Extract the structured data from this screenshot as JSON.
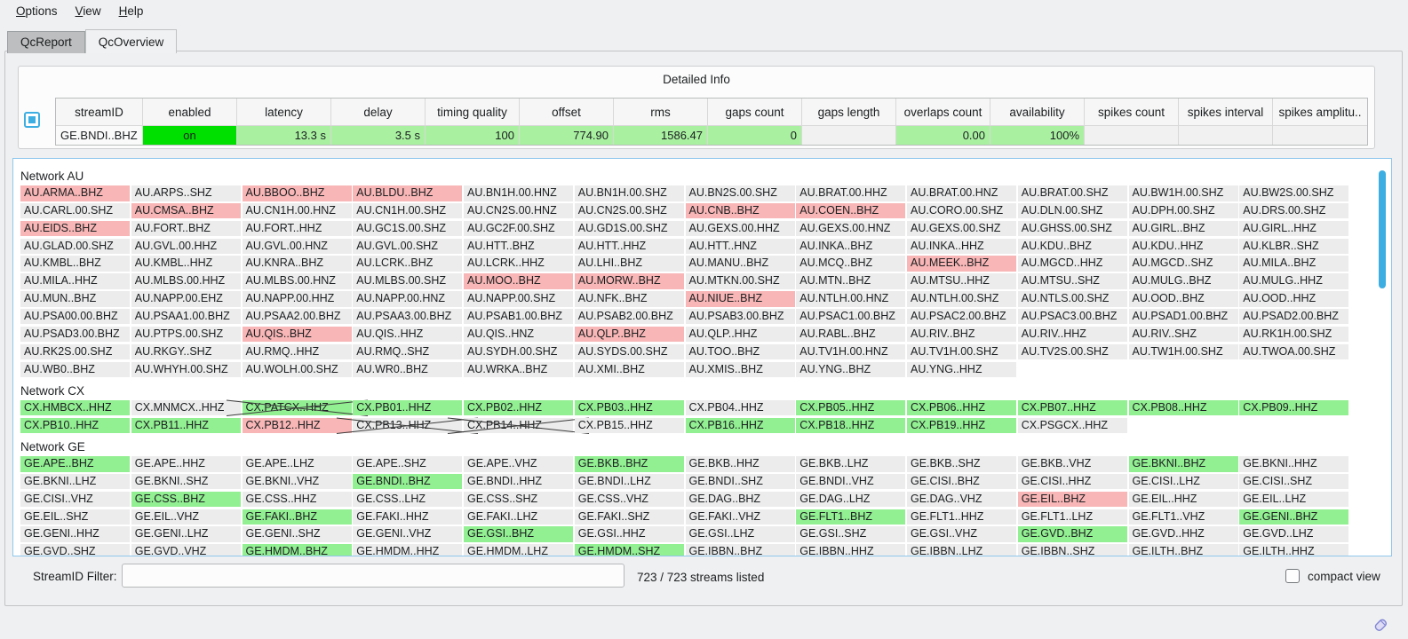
{
  "colors": {
    "accent": "#3daee2",
    "normal": "#ececec",
    "alert": "#f8b6b6",
    "good": "#92ef92",
    "on": "#00e000",
    "metric": "#a9f1a1",
    "plain": "#fafafa",
    "empty": "#f1f1f1",
    "panel_border": "#8fc7ec",
    "cross": "#3c3c3c"
  },
  "menu": {
    "items": [
      {
        "label": "Options"
      },
      {
        "label": "View"
      },
      {
        "label": "Help"
      }
    ]
  },
  "tabs": {
    "report": "QcReport",
    "overview": "QcOverview"
  },
  "detailed_info": {
    "title": "Detailed Info",
    "columns": [
      "streamID",
      "enabled",
      "latency",
      "delay",
      "timing quality",
      "offset",
      "rms",
      "gaps count",
      "gaps length",
      "overlaps count",
      "availability",
      "spikes count",
      "spikes interval",
      "spikes amplitu.."
    ],
    "row": {
      "cells": [
        {
          "text": "GE.BNDI..BHZ",
          "bg": "plain",
          "align": "left"
        },
        {
          "text": "on",
          "bg": "on",
          "align": "center"
        },
        {
          "text": "13.3 s",
          "bg": "metric",
          "align": "right"
        },
        {
          "text": "3.5 s",
          "bg": "metric",
          "align": "right"
        },
        {
          "text": "100",
          "bg": "metric",
          "align": "right"
        },
        {
          "text": "774.90",
          "bg": "metric",
          "align": "right"
        },
        {
          "text": "1586.47",
          "bg": "metric",
          "align": "right"
        },
        {
          "text": "0",
          "bg": "metric",
          "align": "right"
        },
        {
          "text": "",
          "bg": "empty",
          "align": "right"
        },
        {
          "text": "0.00",
          "bg": "metric",
          "align": "right"
        },
        {
          "text": "100%",
          "bg": "metric",
          "align": "right"
        },
        {
          "text": "",
          "bg": "empty",
          "align": "right"
        },
        {
          "text": "",
          "bg": "empty",
          "align": "right"
        },
        {
          "text": "",
          "bg": "empty",
          "align": "right"
        }
      ]
    }
  },
  "networks": [
    {
      "label": "Network AU",
      "rows": [
        [
          [
            "AU.ARMA..BHZ",
            "r"
          ],
          [
            "AU.ARPS..SHZ",
            ""
          ],
          [
            "AU.BBOO..BHZ",
            "r"
          ],
          [
            "AU.BLDU..BHZ",
            "r"
          ],
          [
            "AU.BN1H.00.HNZ",
            ""
          ],
          [
            "AU.BN1H.00.SHZ",
            ""
          ],
          [
            "AU.BN2S.00.SHZ",
            ""
          ],
          [
            "AU.BRAT.00.HHZ",
            ""
          ],
          [
            "AU.BRAT.00.HNZ",
            ""
          ],
          [
            "AU.BRAT.00.SHZ",
            ""
          ],
          [
            "AU.BW1H.00.SHZ",
            ""
          ],
          [
            "AU.BW2S.00.SHZ",
            ""
          ]
        ],
        [
          [
            "AU.CARL.00.SHZ",
            ""
          ],
          [
            "AU.CMSA..BHZ",
            "r"
          ],
          [
            "AU.CN1H.00.HNZ",
            ""
          ],
          [
            "AU.CN1H.00.SHZ",
            ""
          ],
          [
            "AU.CN2S.00.HNZ",
            ""
          ],
          [
            "AU.CN2S.00.SHZ",
            ""
          ],
          [
            "AU.CNB..BHZ",
            "r"
          ],
          [
            "AU.COEN..BHZ",
            "r"
          ],
          [
            "AU.CORO.00.SHZ",
            ""
          ],
          [
            "AU.DLN.00.SHZ",
            ""
          ],
          [
            "AU.DPH.00.SHZ",
            ""
          ],
          [
            "AU.DRS.00.SHZ",
            ""
          ]
        ],
        [
          [
            "AU.EIDS..BHZ",
            "r"
          ],
          [
            "AU.FORT..BHZ",
            ""
          ],
          [
            "AU.FORT..HHZ",
            ""
          ],
          [
            "AU.GC1S.00.SHZ",
            ""
          ],
          [
            "AU.GC2F.00.SHZ",
            ""
          ],
          [
            "AU.GD1S.00.SHZ",
            ""
          ],
          [
            "AU.GEXS.00.HHZ",
            ""
          ],
          [
            "AU.GEXS.00.HNZ",
            ""
          ],
          [
            "AU.GEXS.00.SHZ",
            ""
          ],
          [
            "AU.GHSS.00.SHZ",
            ""
          ],
          [
            "AU.GIRL..BHZ",
            ""
          ],
          [
            "AU.GIRL..HHZ",
            ""
          ]
        ],
        [
          [
            "AU.GLAD.00.SHZ",
            ""
          ],
          [
            "AU.GVL.00.HHZ",
            ""
          ],
          [
            "AU.GVL.00.HNZ",
            ""
          ],
          [
            "AU.GVL.00.SHZ",
            ""
          ],
          [
            "AU.HTT..BHZ",
            ""
          ],
          [
            "AU.HTT..HHZ",
            ""
          ],
          [
            "AU.HTT..HNZ",
            ""
          ],
          [
            "AU.INKA..BHZ",
            ""
          ],
          [
            "AU.INKA..HHZ",
            ""
          ],
          [
            "AU.KDU..BHZ",
            ""
          ],
          [
            "AU.KDU..HHZ",
            ""
          ],
          [
            "AU.KLBR..SHZ",
            ""
          ]
        ],
        [
          [
            "AU.KMBL..BHZ",
            ""
          ],
          [
            "AU.KMBL..HHZ",
            ""
          ],
          [
            "AU.KNRA..BHZ",
            ""
          ],
          [
            "AU.LCRK..BHZ",
            ""
          ],
          [
            "AU.LCRK..HHZ",
            ""
          ],
          [
            "AU.LHI..BHZ",
            ""
          ],
          [
            "AU.MANU..BHZ",
            ""
          ],
          [
            "AU.MCQ..BHZ",
            ""
          ],
          [
            "AU.MEEK..BHZ",
            "r"
          ],
          [
            "AU.MGCD..HHZ",
            ""
          ],
          [
            "AU.MGCD..SHZ",
            ""
          ],
          [
            "AU.MILA..BHZ",
            ""
          ]
        ],
        [
          [
            "AU.MILA..HHZ",
            ""
          ],
          [
            "AU.MLBS.00.HHZ",
            ""
          ],
          [
            "AU.MLBS.00.HNZ",
            ""
          ],
          [
            "AU.MLBS.00.SHZ",
            ""
          ],
          [
            "AU.MOO..BHZ",
            "r"
          ],
          [
            "AU.MORW..BHZ",
            "r"
          ],
          [
            "AU.MTKN.00.SHZ",
            ""
          ],
          [
            "AU.MTN..BHZ",
            ""
          ],
          [
            "AU.MTSU..HHZ",
            ""
          ],
          [
            "AU.MTSU..SHZ",
            ""
          ],
          [
            "AU.MULG..BHZ",
            ""
          ],
          [
            "AU.MULG..HHZ",
            ""
          ]
        ],
        [
          [
            "AU.MUN..BHZ",
            ""
          ],
          [
            "AU.NAPP.00.EHZ",
            ""
          ],
          [
            "AU.NAPP.00.HHZ",
            ""
          ],
          [
            "AU.NAPP.00.HNZ",
            ""
          ],
          [
            "AU.NAPP.00.SHZ",
            ""
          ],
          [
            "AU.NFK..BHZ",
            ""
          ],
          [
            "AU.NIUE..BHZ",
            "r"
          ],
          [
            "AU.NTLH.00.HNZ",
            ""
          ],
          [
            "AU.NTLH.00.SHZ",
            ""
          ],
          [
            "AU.NTLS.00.SHZ",
            ""
          ],
          [
            "AU.OOD..BHZ",
            ""
          ],
          [
            "AU.OOD..HHZ",
            ""
          ]
        ],
        [
          [
            "AU.PSA00.00.BHZ",
            ""
          ],
          [
            "AU.PSAA1.00.BHZ",
            ""
          ],
          [
            "AU.PSAA2.00.BHZ",
            ""
          ],
          [
            "AU.PSAA3.00.BHZ",
            ""
          ],
          [
            "AU.PSAB1.00.BHZ",
            ""
          ],
          [
            "AU.PSAB2.00.BHZ",
            ""
          ],
          [
            "AU.PSAB3.00.BHZ",
            ""
          ],
          [
            "AU.PSAC1.00.BHZ",
            ""
          ],
          [
            "AU.PSAC2.00.BHZ",
            ""
          ],
          [
            "AU.PSAC3.00.BHZ",
            ""
          ],
          [
            "AU.PSAD1.00.BHZ",
            ""
          ],
          [
            "AU.PSAD2.00.BHZ",
            ""
          ]
        ],
        [
          [
            "AU.PSAD3.00.BHZ",
            ""
          ],
          [
            "AU.PTPS.00.SHZ",
            ""
          ],
          [
            "AU.QIS..BHZ",
            "r"
          ],
          [
            "AU.QIS..HHZ",
            ""
          ],
          [
            "AU.QIS..HNZ",
            ""
          ],
          [
            "AU.QLP..BHZ",
            "r"
          ],
          [
            "AU.QLP..HHZ",
            ""
          ],
          [
            "AU.RABL..BHZ",
            ""
          ],
          [
            "AU.RIV..BHZ",
            ""
          ],
          [
            "AU.RIV..HHZ",
            ""
          ],
          [
            "AU.RIV..SHZ",
            ""
          ],
          [
            "AU.RK1H.00.SHZ",
            ""
          ]
        ],
        [
          [
            "AU.RK2S.00.SHZ",
            ""
          ],
          [
            "AU.RKGY..SHZ",
            ""
          ],
          [
            "AU.RMQ..HHZ",
            ""
          ],
          [
            "AU.RMQ..SHZ",
            ""
          ],
          [
            "AU.SYDH.00.SHZ",
            ""
          ],
          [
            "AU.SYDS.00.SHZ",
            ""
          ],
          [
            "AU.TOO..BHZ",
            ""
          ],
          [
            "AU.TV1H.00.HNZ",
            ""
          ],
          [
            "AU.TV1H.00.SHZ",
            ""
          ],
          [
            "AU.TV2S.00.SHZ",
            ""
          ],
          [
            "AU.TW1H.00.SHZ",
            ""
          ],
          [
            "AU.TWOA.00.SHZ",
            ""
          ]
        ],
        [
          [
            "AU.WB0..BHZ",
            ""
          ],
          [
            "AU.WHYH.00.SHZ",
            ""
          ],
          [
            "AU.WOLH.00.SHZ",
            ""
          ],
          [
            "AU.WR0..BHZ",
            ""
          ],
          [
            "AU.WRKA..BHZ",
            ""
          ],
          [
            "AU.XMI..BHZ",
            ""
          ],
          [
            "AU.XMIS..BHZ",
            ""
          ],
          [
            "AU.YNG..BHZ",
            ""
          ],
          [
            "AU.YNG..HHZ",
            ""
          ]
        ]
      ]
    },
    {
      "label": "Network CX",
      "rows": [
        [
          [
            "CX.HMBCX..HHZ",
            "g"
          ],
          [
            "CX.MNMCX..HHZ",
            ""
          ],
          [
            "CX.PATCX..HHZ",
            "gx"
          ],
          [
            "CX.PB01..HHZ",
            "g"
          ],
          [
            "CX.PB02..HHZ",
            "g"
          ],
          [
            "CX.PB03..HHZ",
            "g"
          ],
          [
            "CX.PB04..HHZ",
            ""
          ],
          [
            "CX.PB05..HHZ",
            "g"
          ],
          [
            "CX.PB06..HHZ",
            "g"
          ],
          [
            "CX.PB07..HHZ",
            "g"
          ],
          [
            "CX.PB08..HHZ",
            "g"
          ],
          [
            "CX.PB09..HHZ",
            "g"
          ]
        ],
        [
          [
            "CX.PB10..HHZ",
            "g"
          ],
          [
            "CX.PB11..HHZ",
            "g"
          ],
          [
            "CX.PB12..HHZ",
            "r"
          ],
          [
            "CX.PB13..HHZ",
            "x"
          ],
          [
            "CX.PB14..HHZ",
            "x"
          ],
          [
            "CX.PB15..HHZ",
            ""
          ],
          [
            "CX.PB16..HHZ",
            "g"
          ],
          [
            "CX.PB18..HHZ",
            "g"
          ],
          [
            "CX.PB19..HHZ",
            "g"
          ],
          [
            "CX.PSGCX..HHZ",
            ""
          ]
        ]
      ]
    },
    {
      "label": "Network GE",
      "rows": [
        [
          [
            "GE.APE..BHZ",
            "g"
          ],
          [
            "GE.APE..HHZ",
            ""
          ],
          [
            "GE.APE..LHZ",
            ""
          ],
          [
            "GE.APE..SHZ",
            ""
          ],
          [
            "GE.APE..VHZ",
            ""
          ],
          [
            "GE.BKB..BHZ",
            "g"
          ],
          [
            "GE.BKB..HHZ",
            ""
          ],
          [
            "GE.BKB..LHZ",
            ""
          ],
          [
            "GE.BKB..SHZ",
            ""
          ],
          [
            "GE.BKB..VHZ",
            ""
          ],
          [
            "GE.BKNI..BHZ",
            "g"
          ],
          [
            "GE.BKNI..HHZ",
            ""
          ]
        ],
        [
          [
            "GE.BKNI..LHZ",
            ""
          ],
          [
            "GE.BKNI..SHZ",
            ""
          ],
          [
            "GE.BKNI..VHZ",
            ""
          ],
          [
            "GE.BNDI..BHZ",
            "g"
          ],
          [
            "GE.BNDI..HHZ",
            ""
          ],
          [
            "GE.BNDI..LHZ",
            ""
          ],
          [
            "GE.BNDI..SHZ",
            ""
          ],
          [
            "GE.BNDI..VHZ",
            ""
          ],
          [
            "GE.CISI..BHZ",
            ""
          ],
          [
            "GE.CISI..HHZ",
            ""
          ],
          [
            "GE.CISI..LHZ",
            ""
          ],
          [
            "GE.CISI..SHZ",
            ""
          ]
        ],
        [
          [
            "GE.CISI..VHZ",
            ""
          ],
          [
            "GE.CSS..BHZ",
            "g"
          ],
          [
            "GE.CSS..HHZ",
            ""
          ],
          [
            "GE.CSS..LHZ",
            ""
          ],
          [
            "GE.CSS..SHZ",
            ""
          ],
          [
            "GE.CSS..VHZ",
            ""
          ],
          [
            "GE.DAG..BHZ",
            ""
          ],
          [
            "GE.DAG..LHZ",
            ""
          ],
          [
            "GE.DAG..VHZ",
            ""
          ],
          [
            "GE.EIL..BHZ",
            "r"
          ],
          [
            "GE.EIL..HHZ",
            ""
          ],
          [
            "GE.EIL..LHZ",
            ""
          ]
        ],
        [
          [
            "GE.EIL..SHZ",
            ""
          ],
          [
            "GE.EIL..VHZ",
            ""
          ],
          [
            "GE.FAKI..BHZ",
            "g"
          ],
          [
            "GE.FAKI..HHZ",
            ""
          ],
          [
            "GE.FAKI..LHZ",
            ""
          ],
          [
            "GE.FAKI..SHZ",
            ""
          ],
          [
            "GE.FAKI..VHZ",
            ""
          ],
          [
            "GE.FLT1..BHZ",
            "g"
          ],
          [
            "GE.FLT1..HHZ",
            ""
          ],
          [
            "GE.FLT1..LHZ",
            ""
          ],
          [
            "GE.FLT1..VHZ",
            ""
          ],
          [
            "GE.GENI..BHZ",
            "g"
          ]
        ],
        [
          [
            "GE.GENI..HHZ",
            ""
          ],
          [
            "GE.GENI..LHZ",
            ""
          ],
          [
            "GE.GENI..SHZ",
            ""
          ],
          [
            "GE.GENI..VHZ",
            ""
          ],
          [
            "GE.GSI..BHZ",
            "g"
          ],
          [
            "GE.GSI..HHZ",
            ""
          ],
          [
            "GE.GSI..LHZ",
            ""
          ],
          [
            "GE.GSI..SHZ",
            ""
          ],
          [
            "GE.GSI..VHZ",
            ""
          ],
          [
            "GE.GVD..BHZ",
            "g"
          ],
          [
            "GE.GVD..HHZ",
            ""
          ],
          [
            "GE.GVD..LHZ",
            ""
          ]
        ],
        [
          [
            "GE.GVD..SHZ",
            ""
          ],
          [
            "GE.GVD..VHZ",
            ""
          ],
          [
            "GE.HMDM..BHZ",
            "g"
          ],
          [
            "GE.HMDM..HHZ",
            ""
          ],
          [
            "GE.HMDM..LHZ",
            ""
          ],
          [
            "GE.HMDM..SHZ",
            "g"
          ],
          [
            "GE.IBBN..BHZ",
            ""
          ],
          [
            "GE.IBBN..HHZ",
            ""
          ],
          [
            "GE.IBBN..LHZ",
            ""
          ],
          [
            "GE.IBBN..SHZ",
            ""
          ],
          [
            "GE.ILTH..BHZ",
            ""
          ],
          [
            "GE.ILTH..HHZ",
            ""
          ]
        ]
      ]
    }
  ],
  "footer": {
    "filter_label": "StreamID Filter:",
    "filter_value": "",
    "streams_listed": "723 / 723 streams listed",
    "compact_view_label": "compact view",
    "compact_view_checked": false
  }
}
